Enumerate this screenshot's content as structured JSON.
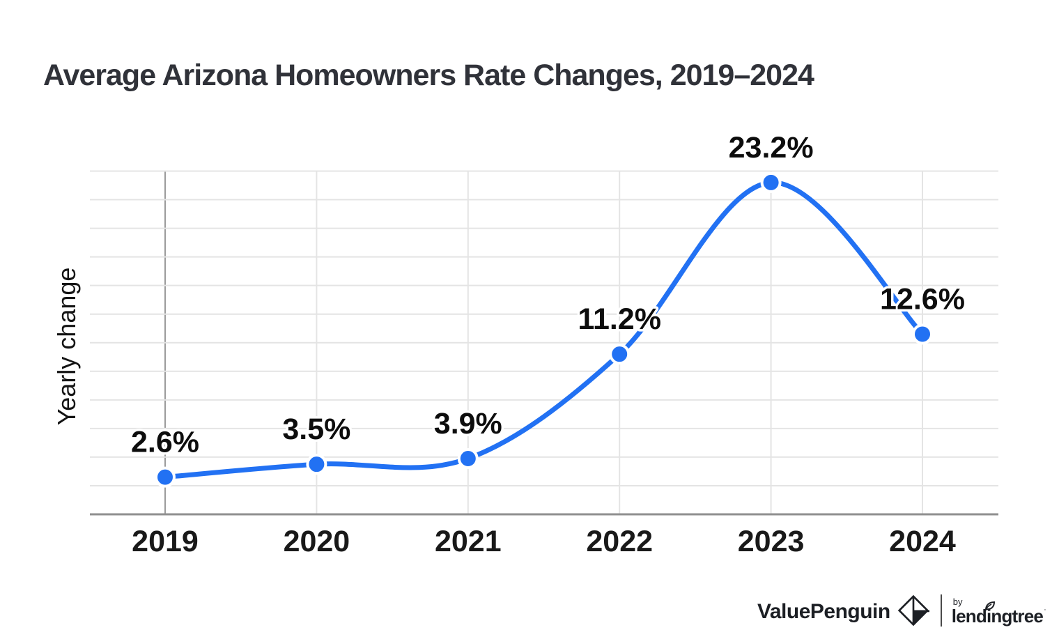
{
  "title": "Average Arizona Homeowners Rate Changes, 2019–2024",
  "chart_data": {
    "type": "line",
    "x": [
      "2019",
      "2020",
      "2021",
      "2022",
      "2023",
      "2024"
    ],
    "values": [
      2.6,
      3.5,
      3.9,
      11.2,
      23.2,
      12.6
    ],
    "point_labels": [
      "2.6%",
      "3.5%",
      "3.9%",
      "11.2%",
      "23.2%",
      "12.6%"
    ],
    "title": "Average Arizona Homeowners Rate Changes, 2019–2024",
    "xlabel": "",
    "ylabel": "Yearly change",
    "ylim": [
      0,
      24
    ],
    "grid_step": 2,
    "grid": "horizontal and vertical, light gray; no numeric y tick labels",
    "legend_position": "none",
    "line_color": "#2271f3",
    "marker_color": "#2271f3",
    "label_color": "#0d0d0d",
    "axis_color": "#8f8f8f",
    "grid_color": "#e4e4e4",
    "first_gridline_color": "#9b9b9b"
  },
  "footer": {
    "brand": "ValuePenguin",
    "by": "by",
    "partner": "lendingtree",
    "trademark": "·"
  }
}
